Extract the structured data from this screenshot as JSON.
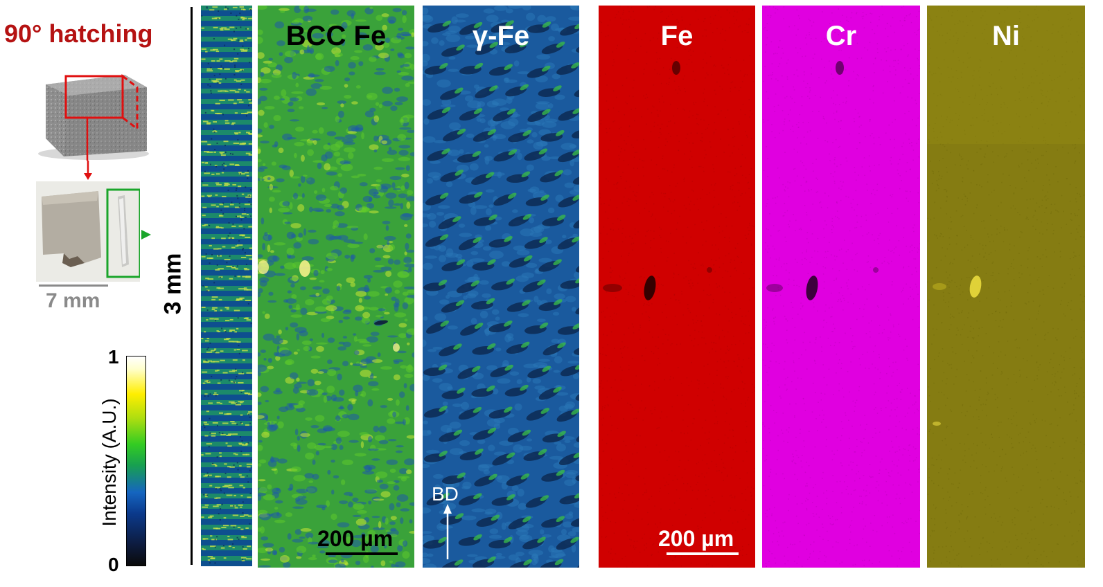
{
  "left": {
    "hatching_title": "90° hatching",
    "scale_7mm": "7 mm",
    "scale_3mm": "3 mm"
  },
  "colorbar": {
    "label": "Intensity (A.U.)",
    "max_label": "1",
    "min_label": "0",
    "colormap": [
      "#0a0a0a",
      "#0d1b3e",
      "#0b3a8c",
      "#1565c0",
      "#18a050",
      "#33cc22",
      "#aadd11",
      "#ffee00",
      "#ffffff"
    ]
  },
  "panels": {
    "bcc": {
      "title": "BCC Fe",
      "scalebar": "200 µm"
    },
    "gamma": {
      "title": "γ-Fe",
      "bd_label": "BD"
    },
    "fe": {
      "title": "Fe",
      "color": "#d40000"
    },
    "cr": {
      "title": "Cr",
      "color": "#e000e0",
      "scalebar": "200 µm"
    },
    "ni": {
      "title": "Ni",
      "color": "#8a8210"
    }
  }
}
